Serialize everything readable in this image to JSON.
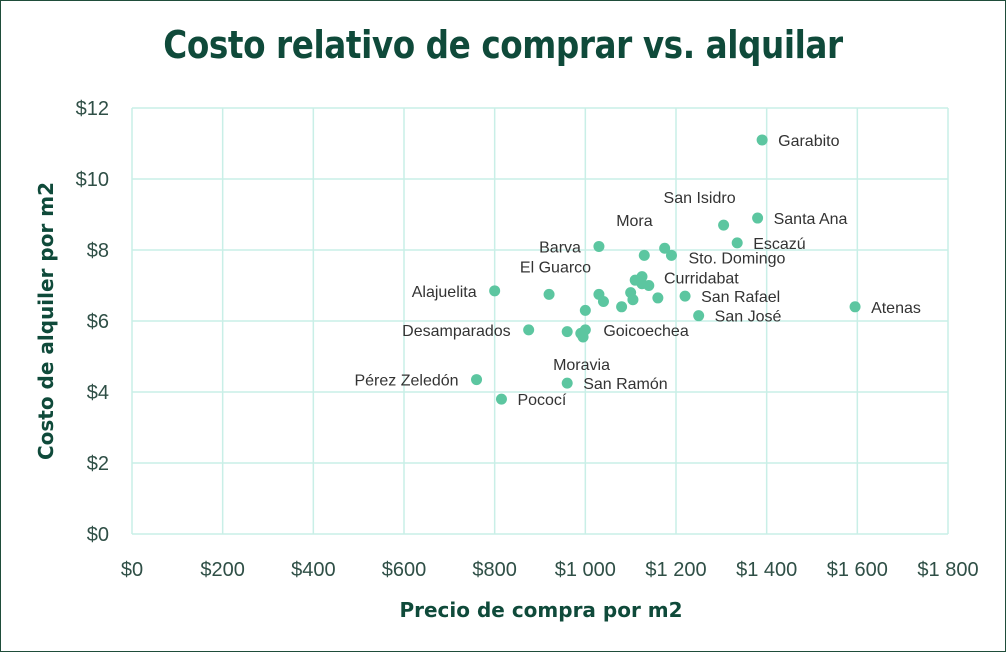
{
  "chart_data": {
    "type": "scatter",
    "title": "Costo relativo de comprar vs. alquilar",
    "xlabel": "Precio de compra por m2",
    "ylabel": "Costo de alquiler por m2",
    "xlim": [
      0,
      1800
    ],
    "ylim": [
      0,
      12
    ],
    "x_ticks": [
      "$0",
      "$200",
      "$400",
      "$600",
      "$800",
      "$1 000",
      "$1 200",
      "$1 400",
      "$1 600",
      "$1 800"
    ],
    "y_ticks": [
      "$0",
      "$2",
      "$4",
      "$6",
      "$8",
      "$10",
      "$12"
    ],
    "grid": true,
    "legend": "none",
    "colors": {
      "point": "#5cc6a0",
      "grid": "#c9efe7",
      "title": "#0f4a3a"
    },
    "points": [
      {
        "x": 1390,
        "y": 11.1,
        "label": "Garabito"
      },
      {
        "x": 1305,
        "y": 8.7,
        "label": "San Isidro"
      },
      {
        "x": 1380,
        "y": 8.9,
        "label": "Santa Ana"
      },
      {
        "x": 1175,
        "y": 8.05,
        "label": "Mora"
      },
      {
        "x": 1335,
        "y": 8.2,
        "label": "Escazú"
      },
      {
        "x": 1030,
        "y": 8.1,
        "label": "Barva"
      },
      {
        "x": 1190,
        "y": 7.85,
        "label": "Sto. Domingo"
      },
      {
        "x": 1130,
        "y": 7.85,
        "label": ""
      },
      {
        "x": 800,
        "y": 6.85,
        "label": "Alajuelita"
      },
      {
        "x": 920,
        "y": 6.75,
        "label": "El Guarco"
      },
      {
        "x": 1110,
        "y": 7.15,
        "label": ""
      },
      {
        "x": 1125,
        "y": 7.25,
        "label": ""
      },
      {
        "x": 1140,
        "y": 7.0,
        "label": ""
      },
      {
        "x": 1125,
        "y": 7.05,
        "label": "Curridabat"
      },
      {
        "x": 1030,
        "y": 6.75,
        "label": ""
      },
      {
        "x": 1040,
        "y": 6.55,
        "label": ""
      },
      {
        "x": 1100,
        "y": 6.8,
        "label": ""
      },
      {
        "x": 1105,
        "y": 6.6,
        "label": ""
      },
      {
        "x": 1160,
        "y": 6.65,
        "label": ""
      },
      {
        "x": 1220,
        "y": 6.7,
        "label": "San Rafael"
      },
      {
        "x": 1080,
        "y": 6.4,
        "label": ""
      },
      {
        "x": 1595,
        "y": 6.4,
        "label": "Atenas"
      },
      {
        "x": 1250,
        "y": 6.15,
        "label": "San José"
      },
      {
        "x": 1000,
        "y": 6.3,
        "label": ""
      },
      {
        "x": 875,
        "y": 5.75,
        "label": "Desamparados"
      },
      {
        "x": 960,
        "y": 5.7,
        "label": ""
      },
      {
        "x": 1000,
        "y": 5.75,
        "label": "Goicoechea"
      },
      {
        "x": 990,
        "y": 5.65,
        "label": ""
      },
      {
        "x": 995,
        "y": 5.55,
        "label": "Moravia"
      },
      {
        "x": 760,
        "y": 4.35,
        "label": "Pérez Zeledón"
      },
      {
        "x": 960,
        "y": 4.25,
        "label": "San Ramón"
      },
      {
        "x": 815,
        "y": 3.8,
        "label": "Pococí"
      }
    ]
  }
}
